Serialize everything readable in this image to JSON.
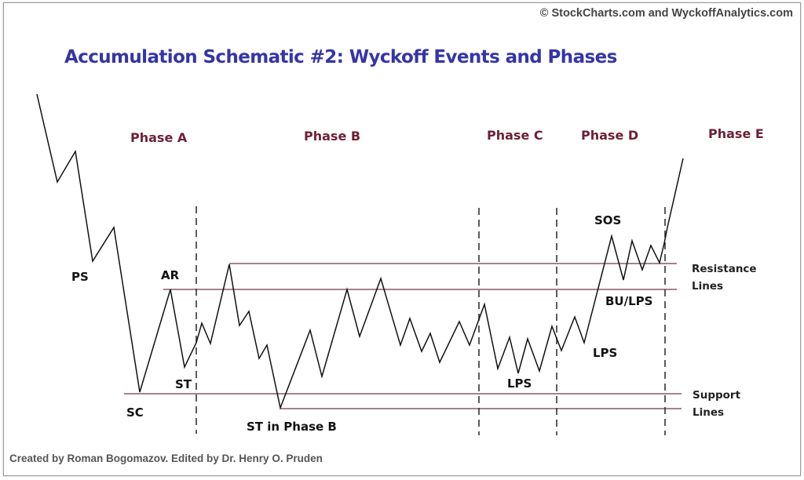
{
  "copyright": "© StockCharts.com and WyckoffAnalytics.com",
  "title": "Accumulation Schematic #2: Wyckoff Events and Phases",
  "credit": "Created by Roman Bogomazov. Edited by Dr. Henry O. Pruden",
  "phases": [
    "Phase A",
    "Phase B",
    "Phase C",
    "Phase D",
    "Phase E"
  ],
  "events": {
    "ps": "PS",
    "sc": "SC",
    "ar": "AR",
    "st": "ST",
    "st_phase_b": "ST in Phase B",
    "lps_c": "LPS",
    "lps_d": "LPS",
    "sos": "SOS",
    "bu_lps": "BU/LPS"
  },
  "lines": {
    "resistance_1": "Resistance",
    "resistance_2": "Lines",
    "support_1": "Support",
    "support_2": "Lines"
  },
  "colors": {
    "title": "#3535a8",
    "phase": "#6e1f36",
    "level": "#6b3a48"
  }
}
